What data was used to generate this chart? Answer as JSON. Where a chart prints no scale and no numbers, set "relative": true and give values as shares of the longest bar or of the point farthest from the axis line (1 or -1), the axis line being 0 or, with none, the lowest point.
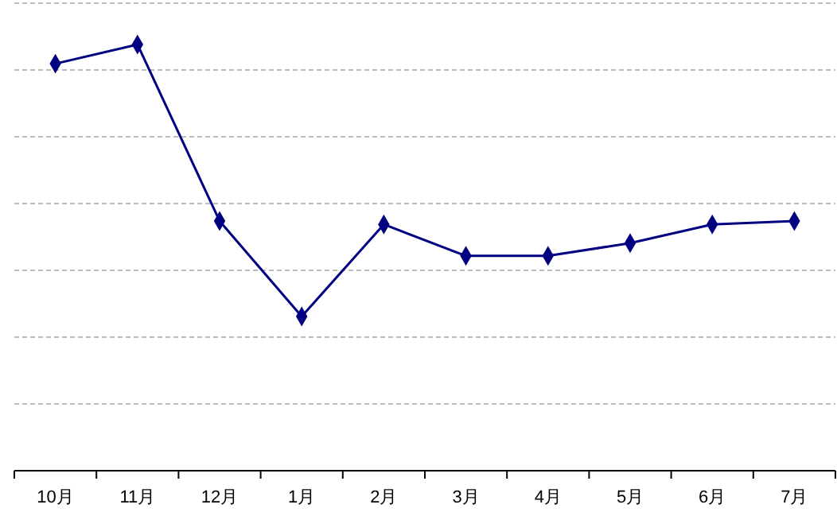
{
  "chart_data": {
    "type": "line",
    "relative": true,
    "categories": [
      "10月",
      "11月",
      "12月",
      "1月",
      "2月",
      "3月",
      "4月",
      "5月",
      "6月",
      "7月"
    ],
    "series": [
      {
        "color": "#000080",
        "values": [
          0.955,
          1,
          0.586,
          0.362,
          0.578,
          0.504,
          0.504,
          0.534,
          0.578,
          0.586
        ]
      }
    ],
    "grid": "y",
    "marker": "diamond",
    "line_style": "solid"
  }
}
